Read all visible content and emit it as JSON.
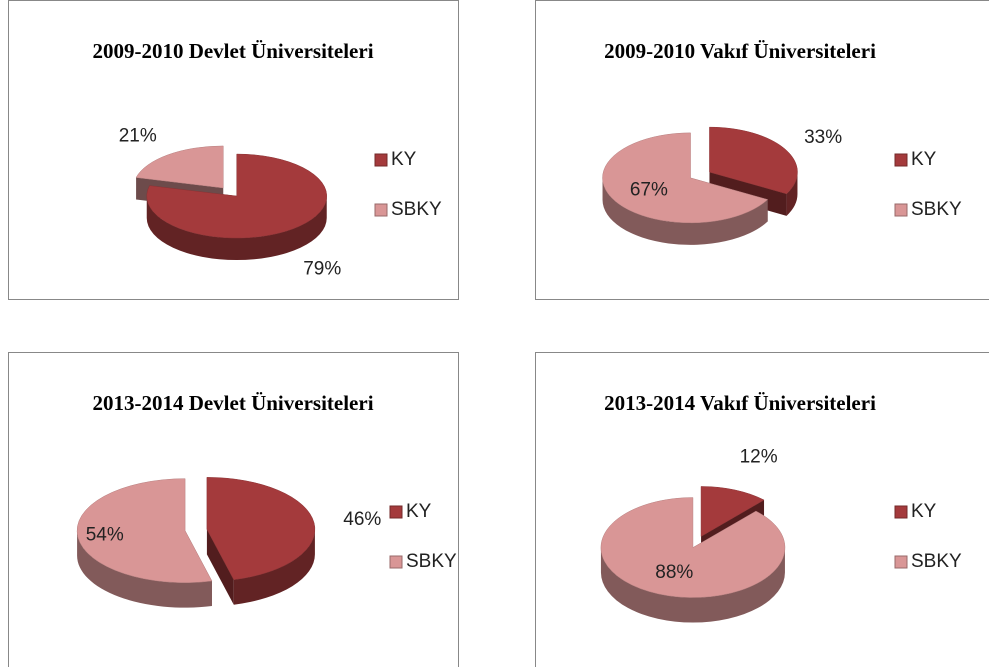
{
  "chart_data": [
    {
      "type": "pie",
      "title": "2009-2010 Devlet Üniversiteleri",
      "categories": [
        "KY",
        "SBKY"
      ],
      "values": [
        79,
        21
      ],
      "value_labels": [
        "79%",
        "21%"
      ],
      "colors": [
        "#a43a3c",
        "#d99696"
      ]
    },
    {
      "type": "pie",
      "title": "2009-2010 Vakıf Üniversiteleri",
      "categories": [
        "KY",
        "SBKY"
      ],
      "values": [
        33,
        67
      ],
      "value_labels": [
        "33%",
        "67%"
      ],
      "colors": [
        "#a43a3c",
        "#d99696"
      ]
    },
    {
      "type": "pie",
      "title": "2013-2014 Devlet Üniversiteleri",
      "categories": [
        "KY",
        "SBKY"
      ],
      "values": [
        46,
        54
      ],
      "value_labels": [
        "46%",
        "54%"
      ],
      "colors": [
        "#a43a3c",
        "#d99696"
      ]
    },
    {
      "type": "pie",
      "title": "2013-2014 Vakıf Üniversiteleri",
      "categories": [
        "KY",
        "SBKY"
      ],
      "values": [
        12,
        88
      ],
      "value_labels": [
        "12%",
        "88%"
      ],
      "colors": [
        "#a43a3c",
        "#d99696"
      ]
    }
  ]
}
